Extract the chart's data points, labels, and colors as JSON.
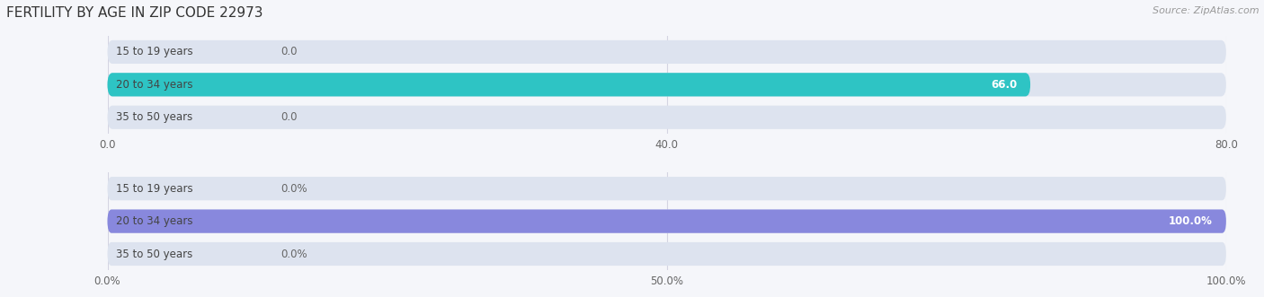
{
  "title": "FERTILITY BY AGE IN ZIP CODE 22973",
  "source": "Source: ZipAtlas.com",
  "top_chart": {
    "categories": [
      "15 to 19 years",
      "20 to 34 years",
      "35 to 50 years"
    ],
    "values": [
      0.0,
      66.0,
      0.0
    ],
    "xlim": [
      0,
      80
    ],
    "xticks": [
      0.0,
      40.0,
      80.0
    ],
    "xtick_labels": [
      "0.0",
      "40.0",
      "80.0"
    ],
    "bar_color": "#2ec4c4",
    "bar_bg_color": "#dde3ef"
  },
  "bottom_chart": {
    "categories": [
      "15 to 19 years",
      "20 to 34 years",
      "35 to 50 years"
    ],
    "values": [
      0.0,
      100.0,
      0.0
    ],
    "xlim": [
      0,
      100
    ],
    "xticks": [
      0.0,
      50.0,
      100.0
    ],
    "xtick_labels": [
      "0.0%",
      "50.0%",
      "100.0%"
    ],
    "bar_color": "#8888dd",
    "bar_bg_color": "#dde3ef"
  },
  "fig_bg": "#f5f6fa",
  "bar_height": 0.72,
  "label_fontsize": 8.5,
  "tick_fontsize": 8.5,
  "title_fontsize": 11,
  "category_fontsize": 8.5,
  "cat_label_color": "#444444",
  "value_label_color_outside": "#666666",
  "value_label_color_inside": "#ffffff"
}
